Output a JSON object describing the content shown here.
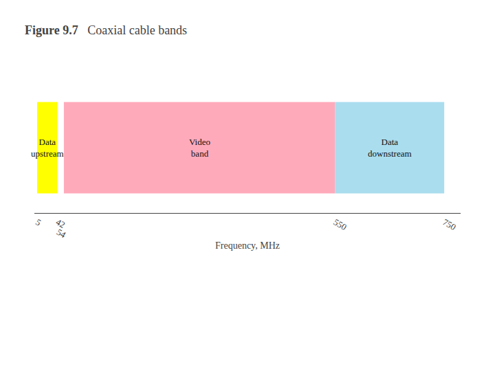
{
  "chart_data": {
    "type": "bar",
    "orientation": "horizontal",
    "title": "Figure 9.7",
    "subtitle": "Coaxial cable bands",
    "xlabel": "Frequency, MHz",
    "categories": [
      "Data\nupstream",
      "Video\nband",
      "Data\ndownstream"
    ],
    "start": [
      5,
      54,
      550
    ],
    "end": [
      42,
      550,
      750
    ],
    "colors": [
      "#ffff00",
      "#ffaabb",
      "#aaddee"
    ],
    "xlim": [
      0,
      780
    ],
    "xticks": [
      5,
      42,
      54,
      550,
      750
    ],
    "grid": false,
    "tick_labels": "x"
  }
}
